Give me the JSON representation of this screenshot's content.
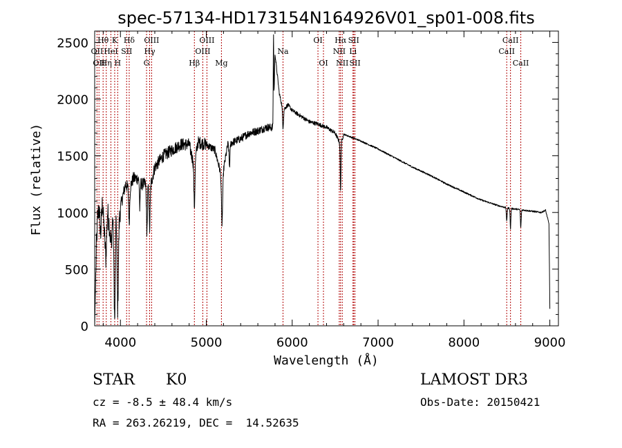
{
  "chart_data": {
    "type": "line",
    "title": "spec-57134-HD173154N164926V01_sp01-008.fits",
    "xlabel": "Wavelength (Å)",
    "ylabel": "Flux (relative)",
    "xlim": [
      3700,
      9100
    ],
    "ylim": [
      0,
      2600
    ],
    "x_ticks": [
      4000,
      5000,
      6000,
      7000,
      8000,
      9000
    ],
    "x_tick_labels": [
      "4000",
      "5000",
      "6000",
      "7000",
      "8000",
      "9000"
    ],
    "y_ticks": [
      0,
      500,
      1000,
      1500,
      2000,
      2500
    ],
    "y_tick_labels": [
      "0",
      "500",
      "1000",
      "1500",
      "2000",
      "2500"
    ],
    "grid": false,
    "line_color": "#000000",
    "marker_color": "#b00000",
    "spectrum_anchors": [
      [
        3700,
        0
      ],
      [
        3710,
        350
      ],
      [
        3720,
        700
      ],
      [
        3735,
        950
      ],
      [
        3750,
        1050
      ],
      [
        3770,
        800
      ],
      [
        3790,
        1100
      ],
      [
        3810,
        850
      ],
      [
        3830,
        600
      ],
      [
        3850,
        1000
      ],
      [
        3870,
        900
      ],
      [
        3890,
        700
      ],
      [
        3910,
        950
      ],
      [
        3933,
        520
      ],
      [
        3950,
        1000
      ],
      [
        3968,
        600
      ],
      [
        3985,
        900
      ],
      [
        4000,
        1050
      ],
      [
        4030,
        1150
      ],
      [
        4060,
        1250
      ],
      [
        4100,
        1200
      ],
      [
        4150,
        1300
      ],
      [
        4200,
        1300
      ],
      [
        4250,
        1250
      ],
      [
        4300,
        1250
      ],
      [
        4340,
        1200
      ],
      [
        4400,
        1400
      ],
      [
        4500,
        1500
      ],
      [
        4600,
        1550
      ],
      [
        4700,
        1600
      ],
      [
        4800,
        1600
      ],
      [
        4861,
        1400
      ],
      [
        4900,
        1620
      ],
      [
        5000,
        1600
      ],
      [
        5100,
        1550
      ],
      [
        5183,
        1300
      ],
      [
        5250,
        1600
      ],
      [
        5400,
        1650
      ],
      [
        5500,
        1700
      ],
      [
        5600,
        1720
      ],
      [
        5700,
        1750
      ],
      [
        5780,
        1750
      ],
      [
        5800,
        2400
      ],
      [
        5850,
        2050
      ],
      [
        5893,
        1900
      ],
      [
        5950,
        1950
      ],
      [
        6000,
        1900
      ],
      [
        6100,
        1850
      ],
      [
        6200,
        1800
      ],
      [
        6300,
        1780
      ],
      [
        6400,
        1750
      ],
      [
        6500,
        1700
      ],
      [
        6563,
        1600
      ],
      [
        6600,
        1690
      ],
      [
        6700,
        1660
      ],
      [
        6800,
        1630
      ],
      [
        7000,
        1560
      ],
      [
        7200,
        1480
      ],
      [
        7400,
        1400
      ],
      [
        7600,
        1330
      ],
      [
        7800,
        1250
      ],
      [
        8000,
        1180
      ],
      [
        8200,
        1110
      ],
      [
        8400,
        1060
      ],
      [
        8500,
        1040
      ],
      [
        8600,
        1030
      ],
      [
        8700,
        1020
      ],
      [
        8800,
        1010
      ],
      [
        8900,
        1000
      ],
      [
        8950,
        1020
      ],
      [
        8990,
        900
      ],
      [
        9000,
        150
      ]
    ],
    "spectrum_features": [
      {
        "x": 3933,
        "depth": 500,
        "width": 10
      },
      {
        "x": 3968,
        "depth": 450,
        "width": 10
      },
      {
        "x": 4102,
        "depth": 300,
        "width": 8
      },
      {
        "x": 4226,
        "depth": 250,
        "width": 6
      },
      {
        "x": 4308,
        "depth": 400,
        "width": 8
      },
      {
        "x": 4340,
        "depth": 350,
        "width": 8
      },
      {
        "x": 4861,
        "depth": 350,
        "width": 8
      },
      {
        "x": 5183,
        "depth": 400,
        "width": 10
      },
      {
        "x": 5270,
        "depth": 200,
        "width": 8
      },
      {
        "x": 5893,
        "depth": 150,
        "width": 8
      },
      {
        "x": 6563,
        "depth": 420,
        "width": 6
      },
      {
        "x": 8498,
        "depth": 120,
        "width": 6
      },
      {
        "x": 8542,
        "depth": 180,
        "width": 6
      },
      {
        "x": 8662,
        "depth": 160,
        "width": 6
      }
    ],
    "spectrum_spikes": [
      {
        "x": 5782,
        "value": 2600,
        "width": 4
      }
    ],
    "line_markers": [
      {
        "x": 3727,
        "label": "OII",
        "row": 2
      },
      {
        "x": 3750,
        "label": "OII",
        "row": 3
      },
      {
        "x": 3798,
        "label": "Hθ",
        "row": 1
      },
      {
        "x": 3835,
        "label": "Hη",
        "row": 3
      },
      {
        "x": 3889,
        "label": "HeI",
        "row": 2
      },
      {
        "x": 3933,
        "label": "K",
        "row": 1
      },
      {
        "x": 3968,
        "label": "H",
        "row": 3
      },
      {
        "x": 4072,
        "label": "SII",
        "row": 2
      },
      {
        "x": 4102,
        "label": "Hδ",
        "row": 1
      },
      {
        "x": 4304,
        "label": "G",
        "row": 3
      },
      {
        "x": 4340,
        "label": "Hγ",
        "row": 2
      },
      {
        "x": 4363,
        "label": "OIII",
        "row": 1
      },
      {
        "x": 4861,
        "label": "Hβ",
        "row": 3
      },
      {
        "x": 4959,
        "label": "OIII",
        "row": 2
      },
      {
        "x": 5007,
        "label": "OIII",
        "row": 1
      },
      {
        "x": 5176,
        "label": "Mg",
        "row": 3
      },
      {
        "x": 5893,
        "label": "Na",
        "row": 2
      },
      {
        "x": 6300,
        "label": "OI",
        "row": 1
      },
      {
        "x": 6364,
        "label": "OI",
        "row": 3
      },
      {
        "x": 6548,
        "label": "NII",
        "row": 2
      },
      {
        "x": 6563,
        "label": "Hα",
        "row": 1
      },
      {
        "x": 6583,
        "label": "NII",
        "row": 3
      },
      {
        "x": 6708,
        "label": "Li",
        "row": 2
      },
      {
        "x": 6716,
        "label": "SII",
        "row": 1
      },
      {
        "x": 6731,
        "label": "SII",
        "row": 3
      },
      {
        "x": 8498,
        "label": "CaII",
        "row": 2
      },
      {
        "x": 8542,
        "label": "CaII",
        "row": 1
      },
      {
        "x": 8662,
        "label": "CaII",
        "row": 3
      }
    ]
  },
  "info": {
    "object_class": "STAR",
    "subclass": "K0",
    "survey": "LAMOST DR3",
    "velocity": "cz = -8.5 ± 48.4 km/s",
    "obs_date": "Obs-Date: 20150421",
    "coords": "RA = 263.26219, DEC =  14.52635"
  }
}
